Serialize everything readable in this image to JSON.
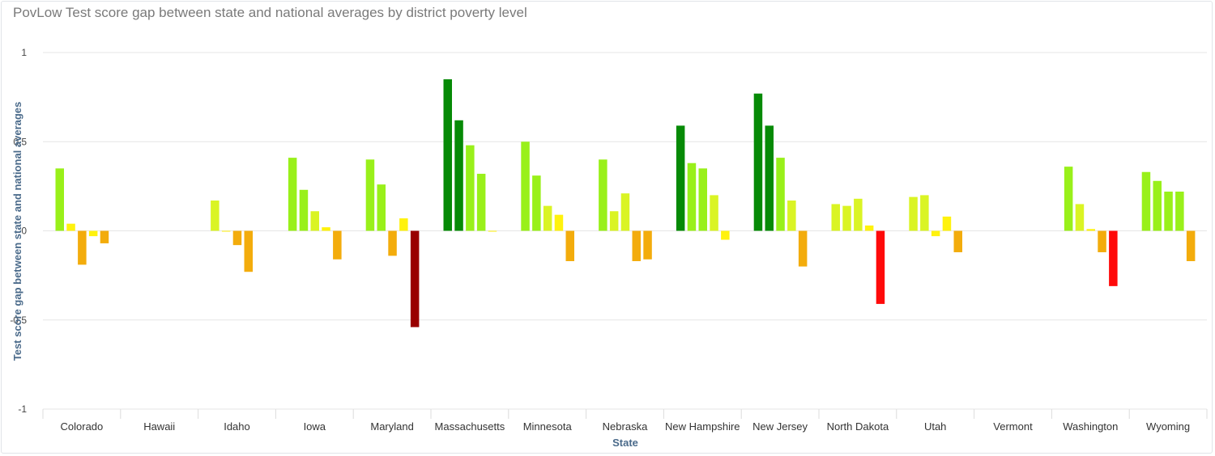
{
  "title": "PovLow Test score gap between state and national averages by district poverty level",
  "chart_data": {
    "type": "bar",
    "title": "PovLow Test score gap between state and national averages by district poverty level",
    "xlabel": "State",
    "ylabel": "Test score gap between state and national averages",
    "ylim": [
      -1,
      1
    ],
    "yticks": [
      {
        "value": 1,
        "label": "1"
      },
      {
        "value": 0.5,
        "label": "0.5"
      },
      {
        "value": 0,
        "label": "0"
      },
      {
        "value": -0.5,
        "label": "-0.5"
      },
      {
        "value": -1,
        "label": "-1"
      }
    ],
    "grid": true,
    "legend": "none",
    "categories": [
      "Colorado",
      "Hawaii",
      "Idaho",
      "Iowa",
      "Maryland",
      "Massachusetts",
      "Minnesota",
      "Nebraska",
      "New Hampshire",
      "New Jersey",
      "North Dakota",
      "Utah",
      "Vermont",
      "Washington",
      "Wyoming"
    ],
    "values": [
      [
        0.35,
        0.04,
        -0.19,
        -0.03,
        -0.07
      ],
      [],
      [
        0.17,
        0.0,
        -0.08,
        -0.23
      ],
      [
        0.41,
        0.23,
        0.11,
        0.02,
        -0.16
      ],
      [
        0.4,
        0.26,
        -0.14,
        0.07,
        -0.54
      ],
      [
        0.85,
        0.62,
        0.48,
        0.32,
        0.0
      ],
      [
        0.5,
        0.31,
        0.14,
        0.09,
        -0.17
      ],
      [
        0.4,
        0.11,
        0.21,
        -0.17,
        -0.16
      ],
      [
        0.59,
        0.38,
        0.35,
        0.2,
        -0.05
      ],
      [
        0.77,
        0.59,
        0.41,
        0.17,
        -0.2
      ],
      [
        0.15,
        0.14,
        0.18,
        0.03,
        -0.41
      ],
      [
        0.19,
        0.2,
        -0.03,
        0.08,
        -0.12
      ],
      [],
      [
        0.36,
        0.15,
        0.01,
        -0.12,
        -0.31
      ],
      [
        0.33,
        0.28,
        0.22,
        0.22,
        -0.17
      ]
    ],
    "colors": {
      "dark_green": "#068a06",
      "bright_green": "#99f01a",
      "yellow_green": "#daf424",
      "yellow": "#fff20d",
      "orange": "#f3ac0c",
      "red": "#ff0a0a",
      "dark_red": "#990000"
    }
  }
}
